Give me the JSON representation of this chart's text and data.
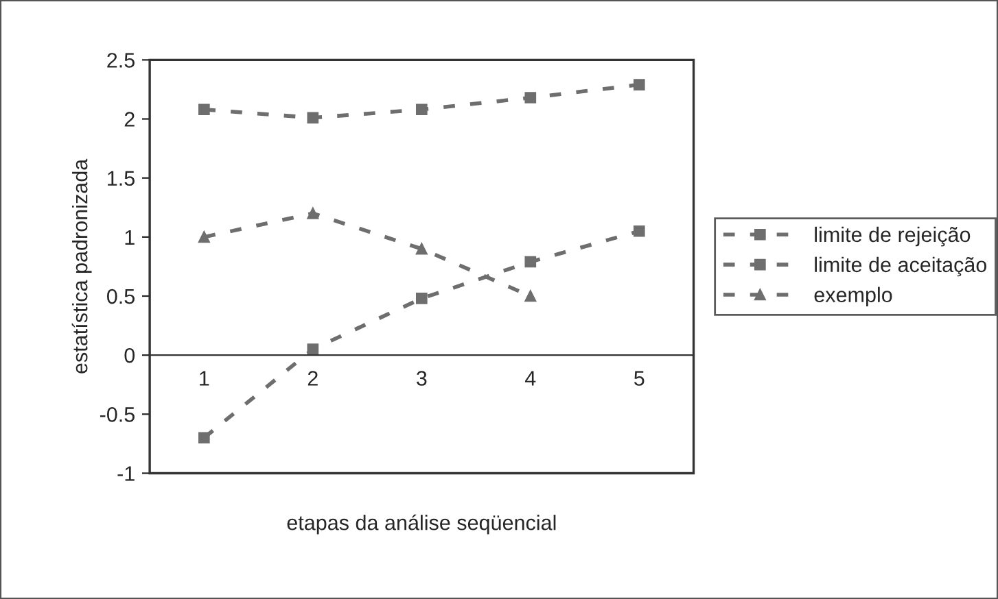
{
  "chart_data": {
    "type": "line",
    "xlabel": "etapas da análise seqüencial",
    "ylabel": "estatística padronizada",
    "categories": [
      "1",
      "2",
      "3",
      "4",
      "5"
    ],
    "series": [
      {
        "name": "limite de rejeição",
        "color": "#6e6e6e",
        "values": [
          2.08,
          2.01,
          2.08,
          2.18,
          2.29
        ],
        "marker": "square"
      },
      {
        "name": "limite de aceitação",
        "color": "#6e6e6e",
        "values": [
          -0.7,
          0.05,
          0.48,
          0.79,
          1.05
        ],
        "marker": "square"
      },
      {
        "name": "exemplo",
        "color": "#6e6e6e",
        "values": [
          1.0,
          1.2,
          0.9,
          0.5,
          null
        ],
        "marker": "triangle"
      }
    ],
    "ylim": [
      -1,
      2.5
    ],
    "yticks": [
      2.5,
      2,
      1.5,
      1,
      0.5,
      0,
      -0.5,
      -1
    ],
    "line_style": "dashed",
    "grid": false,
    "legend": "right"
  }
}
